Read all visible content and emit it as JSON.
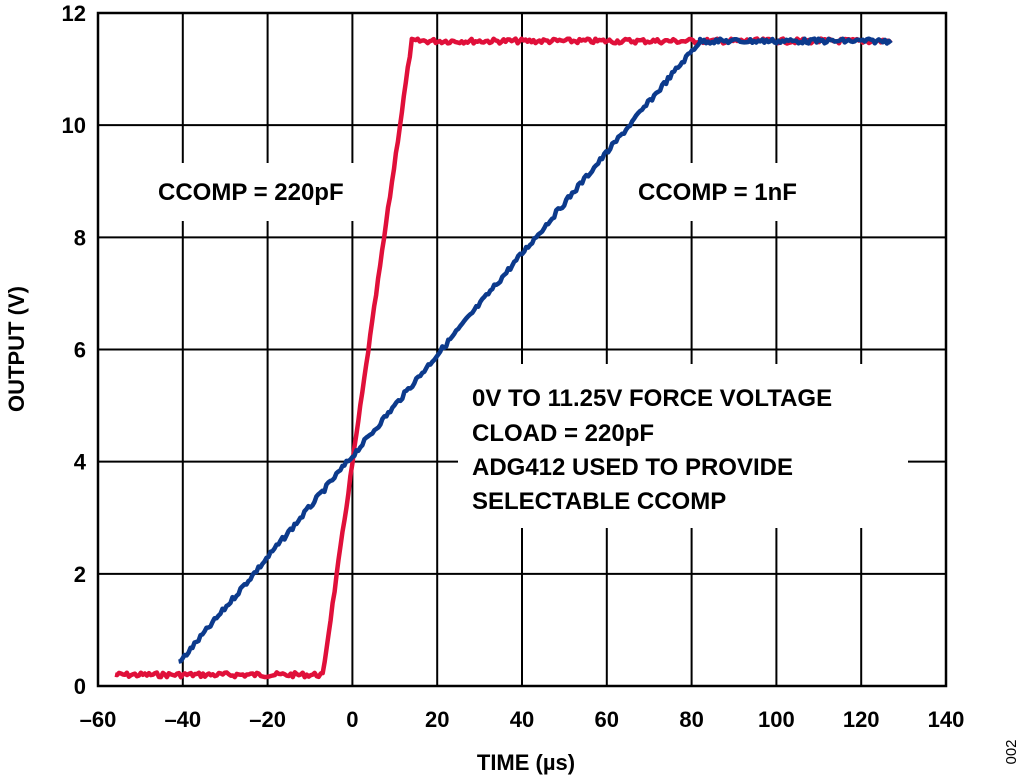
{
  "chart_data": {
    "type": "line",
    "xlabel": "TIME (µs)",
    "ylabel": "OUTPUT (V)",
    "xlim": [
      -60,
      140
    ],
    "ylim": [
      0,
      12
    ],
    "x_ticks": [
      -60,
      -40,
      -20,
      0,
      20,
      40,
      60,
      80,
      100,
      120,
      140
    ],
    "x_tick_labels": [
      "–60",
      "–40",
      "–20",
      "0",
      "20",
      "40",
      "60",
      "80",
      "100",
      "120",
      "140"
    ],
    "y_ticks": [
      0,
      2,
      4,
      6,
      8,
      10,
      12
    ],
    "y_tick_labels": [
      "0",
      "2",
      "4",
      "6",
      "8",
      "10",
      "12"
    ],
    "grid": true,
    "series": [
      {
        "name": "CCOMP = 220pF",
        "color": "#e0103a",
        "x": [
          -56,
          -7,
          14,
          127
        ],
        "y": [
          0.2,
          0.2,
          11.5,
          11.5
        ]
      },
      {
        "name": "CCOMP = 1nF",
        "color": "#0c3a8c",
        "x": [
          -41,
          82,
          127
        ],
        "y": [
          0.4,
          11.5,
          11.5
        ]
      }
    ],
    "annotations": [
      {
        "text": "CCOMP = 220pF"
      },
      {
        "text": "CCOMP = 1nF"
      },
      {
        "lines": [
          "0V TO 11.25V FORCE VOLTAGE",
          "CLOAD = 220pF",
          "ADG412 USED TO PROVIDE",
          "SELECTABLE CCOMP"
        ]
      }
    ],
    "figure_id": "002"
  }
}
